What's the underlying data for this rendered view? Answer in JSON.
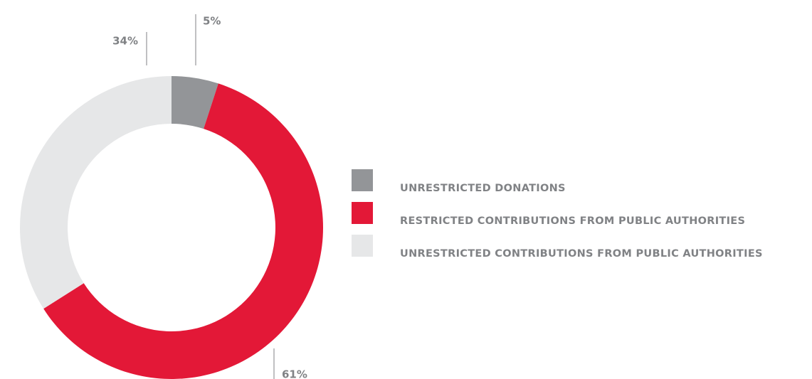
{
  "chart_data": {
    "type": "pie",
    "donut": true,
    "categories": [
      "UNRESTRICTED DONATIONS",
      "RESTRICTED CONTRIBUTIONS FROM PUBLIC AUTHORITIES",
      "UNRESTRICTED CONTRIBUTIONS FROM PUBLIC AUTHORITIES"
    ],
    "values": [
      5,
      61,
      34
    ],
    "value_labels": [
      "5%",
      "61%",
      "34%"
    ],
    "colors": [
      "#939598",
      "#e31837",
      "#e6e7e8"
    ],
    "legend": "right"
  }
}
